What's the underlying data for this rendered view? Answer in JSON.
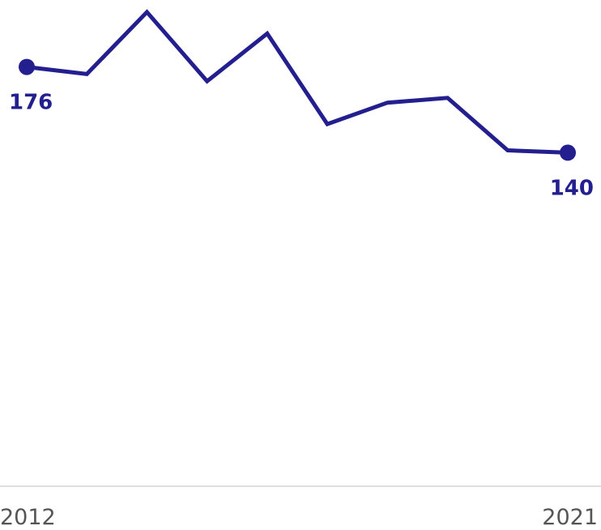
{
  "chart_data": {
    "type": "line",
    "title": "",
    "xlabel": "",
    "ylabel": "",
    "x": [
      2012,
      2013,
      2014,
      2015,
      2016,
      2017,
      2018,
      2019,
      2020,
      2021
    ],
    "series": [
      {
        "values": [
          176,
          173,
          199,
          170,
          190,
          152,
          161,
          163,
          141,
          140
        ],
        "color": "#231f8f"
      }
    ],
    "ylim": [
      0,
      200
    ],
    "grid": false,
    "legend": "none",
    "x_tick_labels": [
      "2012",
      "2021"
    ],
    "data_labels": [
      {
        "index": 0,
        "text": "176"
      },
      {
        "index": 9,
        "text": "140"
      }
    ],
    "baseline_color": "#dddddd",
    "tick_label_color": "#555555"
  }
}
